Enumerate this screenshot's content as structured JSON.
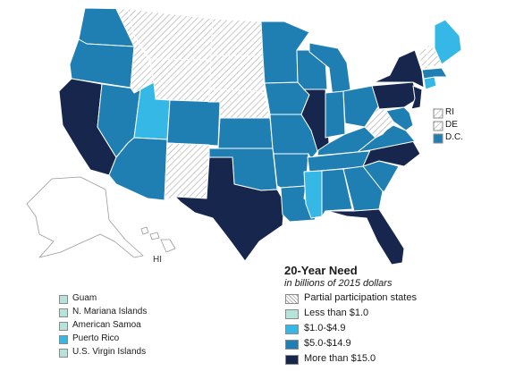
{
  "legend": {
    "title": "20-Year Need",
    "subtitle": "in billions of 2015 dollars",
    "items": [
      {
        "label": "Partial participation states",
        "category": "partial"
      },
      {
        "label": "Less than $1.0",
        "category": "lt1"
      },
      {
        "label": "$1.0-$4.9",
        "category": "1to5"
      },
      {
        "label": "$5.0-$14.9",
        "category": "5to15"
      },
      {
        "label": "More than $15.0",
        "category": "gt15"
      }
    ]
  },
  "colors": {
    "partial": "#ffffff",
    "lt1": "#b6e3da",
    "1to5": "#35b8e6",
    "5to15": "#1f7fb3",
    "gt15": "#16264d",
    "state_border": "#ffffff",
    "alaska_hawaii_fill": "#ffffff",
    "alaska_hawaii_stroke": "#9a9a9a"
  },
  "small_states": [
    {
      "label": "RI",
      "category": "partial"
    },
    {
      "label": "DE",
      "category": "partial"
    },
    {
      "label": "D.C.",
      "category": "5to15"
    }
  ],
  "territories": [
    {
      "label": "Guam",
      "category": "lt1"
    },
    {
      "label": "N. Mariana Islands",
      "category": "lt1"
    },
    {
      "label": "American Samoa",
      "category": "lt1"
    },
    {
      "label": "Puerto Rico",
      "category": "1to5"
    },
    {
      "label": "U.S. Virgin Islands",
      "category": "lt1"
    }
  ],
  "labels": {
    "hawaii": "HI"
  },
  "states": {
    "WA": "5to15",
    "OR": "5to15",
    "CA": "gt15",
    "NV": "5to15",
    "ID": "partial",
    "MT": "partial",
    "WY": "partial",
    "UT": "1to5",
    "AZ": "5to15",
    "CO": "5to15",
    "NM": "partial",
    "ND": "partial",
    "SD": "partial",
    "NE": "partial",
    "KS": "5to15",
    "OK": "5to15",
    "TX": "gt15",
    "MN": "5to15",
    "IA": "5to15",
    "MO": "5to15",
    "AR": "5to15",
    "LA": "5to15",
    "WI": "5to15",
    "IL": "gt15",
    "MI": "5to15",
    "IN": "5to15",
    "OH": "5to15",
    "KY": "5to15",
    "TN": "5to15",
    "MS": "1to5",
    "AL": "5to15",
    "GA": "5to15",
    "FL": "gt15",
    "SC": "5to15",
    "NC": "gt15",
    "VA": "5to15",
    "WV": "partial",
    "PA": "gt15",
    "NY": "gt15",
    "NJ": "gt15",
    "MD": "5to15",
    "CT": "1to5",
    "MA": "5to15",
    "VT": "partial",
    "NH": "partial",
    "ME": "1to5",
    "AK": "alaska",
    "HI": "hawaii"
  }
}
